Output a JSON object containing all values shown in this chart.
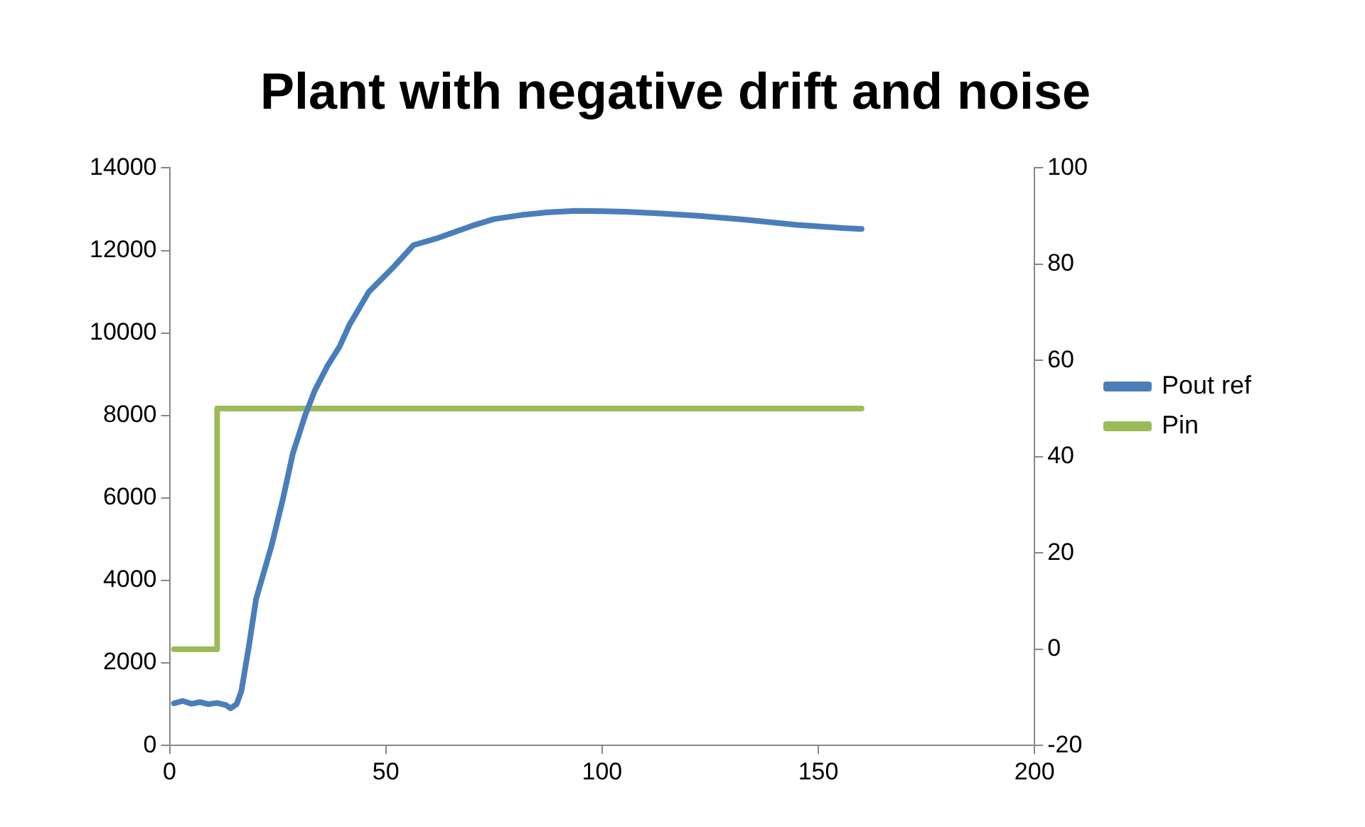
{
  "chart_data": {
    "type": "line",
    "title": "Plant with negative drift and noise",
    "legend": "right",
    "grid": false,
    "marker": "none",
    "xlim": [
      0,
      200
    ],
    "xticks": [
      0,
      50,
      100,
      150,
      200
    ],
    "ylim": [
      0,
      14000
    ],
    "yticks": [
      0,
      2000,
      4000,
      6000,
      8000,
      10000,
      12000,
      14000
    ],
    "y2lim": [
      -20,
      100
    ],
    "y2ticks": [
      -20,
      0,
      20,
      40,
      60,
      80,
      100
    ],
    "series": [
      {
        "name": "Pout ref",
        "color": "#4a7ebb",
        "x": [
          1,
          3,
          5,
          7,
          9,
          11,
          13,
          14.1,
          15.5,
          16.6,
          18.3,
          20,
          23.6,
          26.3,
          28.5,
          31.4,
          33.6,
          36.5,
          39.3,
          41.6,
          46.1,
          51.8,
          56.4,
          62,
          70,
          75,
          81.4,
          87,
          93.9,
          100,
          105.2,
          113,
          122.3,
          133.6,
          145,
          156.4,
          160
        ],
        "values": [
          1020,
          1080,
          1010,
          1050,
          1000,
          1030,
          980,
          900,
          1000,
          1320,
          2380,
          3550,
          4850,
          6020,
          7080,
          8020,
          8610,
          9200,
          9670,
          10200,
          11000,
          11600,
          12130,
          12300,
          12600,
          12760,
          12860,
          12920,
          12960,
          12950,
          12940,
          12900,
          12840,
          12740,
          12620,
          12540,
          12520
        ]
      },
      {
        "name": "Pin",
        "color": "#9bbb59",
        "type": "step",
        "axis": "y2",
        "x": [
          1,
          11,
          160
        ],
        "values": [
          0,
          50,
          50
        ]
      }
    ]
  }
}
